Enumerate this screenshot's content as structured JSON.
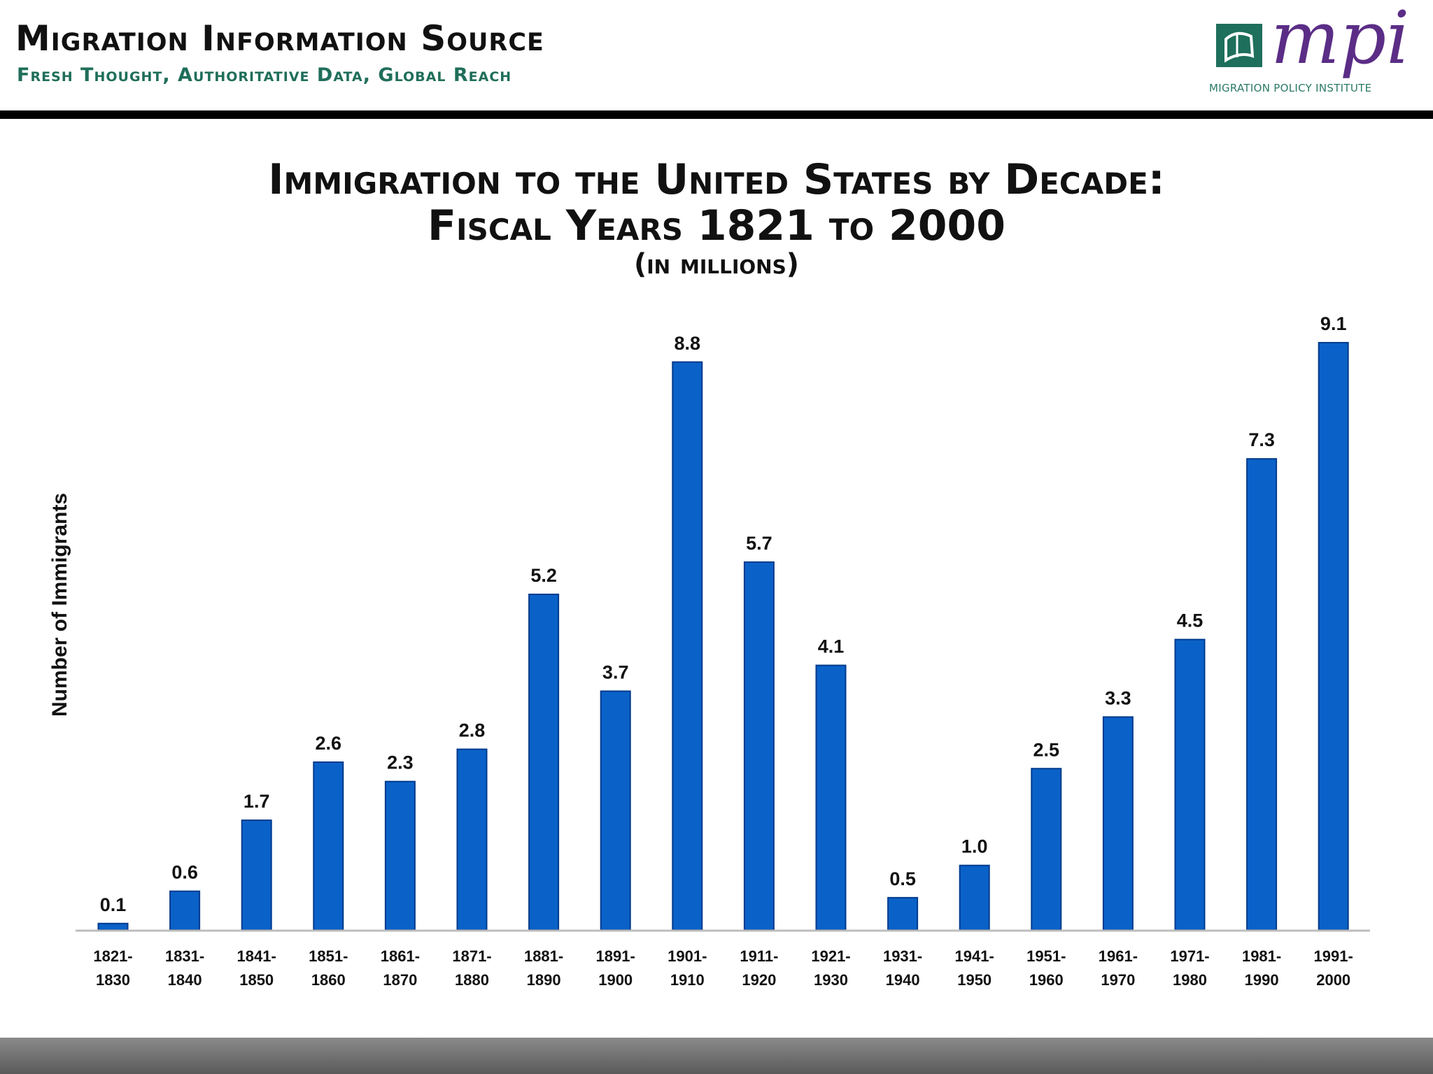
{
  "header": {
    "site_title": "Migration Information Source",
    "tagline": "Fresh Thought, Authoritative Data, Global Reach",
    "logo_text": "mpi",
    "logo_subtitle": "MIGRATION POLICY INSTITUTE"
  },
  "colors": {
    "bar_fill": "#0a62c9",
    "header_rule": "#000000",
    "tagline": "#1f6e5a",
    "logo_purple": "#5b2d86",
    "logo_green": "#1e6f5c"
  },
  "chart_data": {
    "type": "bar",
    "title": "Immigration to the United States by Decade:",
    "title_line2": "Fiscal Years 1821 to 2000",
    "subtitle": "(in millions)",
    "xlabel": "",
    "ylabel": "Number of Immigrants",
    "ylim": [
      0,
      9.5
    ],
    "grid": false,
    "legend": "none",
    "categories": [
      [
        "1821-",
        "1830"
      ],
      [
        "1831-",
        "1840"
      ],
      [
        "1841-",
        "1850"
      ],
      [
        "1851-",
        "1860"
      ],
      [
        "1861-",
        "1870"
      ],
      [
        "1871-",
        "1880"
      ],
      [
        "1881-",
        "1890"
      ],
      [
        "1891-",
        "1900"
      ],
      [
        "1901-",
        "1910"
      ],
      [
        "1911-",
        "1920"
      ],
      [
        "1921-",
        "1930"
      ],
      [
        "1931-",
        "1940"
      ],
      [
        "1941-",
        "1950"
      ],
      [
        "1951-",
        "1960"
      ],
      [
        "1961-",
        "1970"
      ],
      [
        "1971-",
        "1980"
      ],
      [
        "1981-",
        "1990"
      ],
      [
        "1991-",
        "2000"
      ]
    ],
    "values": [
      0.1,
      0.6,
      1.7,
      2.6,
      2.3,
      2.8,
      5.2,
      3.7,
      8.8,
      5.7,
      4.1,
      0.5,
      1.0,
      2.5,
      3.3,
      4.5,
      7.3,
      9.1
    ],
    "value_labels": [
      "0.1",
      "0.6",
      "1.7",
      "2.6",
      "2.3",
      "2.8",
      "5.2",
      "3.7",
      "8.8",
      "5.7",
      "4.1",
      "0.5",
      "1.0",
      "2.5",
      "3.3",
      "4.5",
      "7.3",
      "9.1"
    ]
  }
}
